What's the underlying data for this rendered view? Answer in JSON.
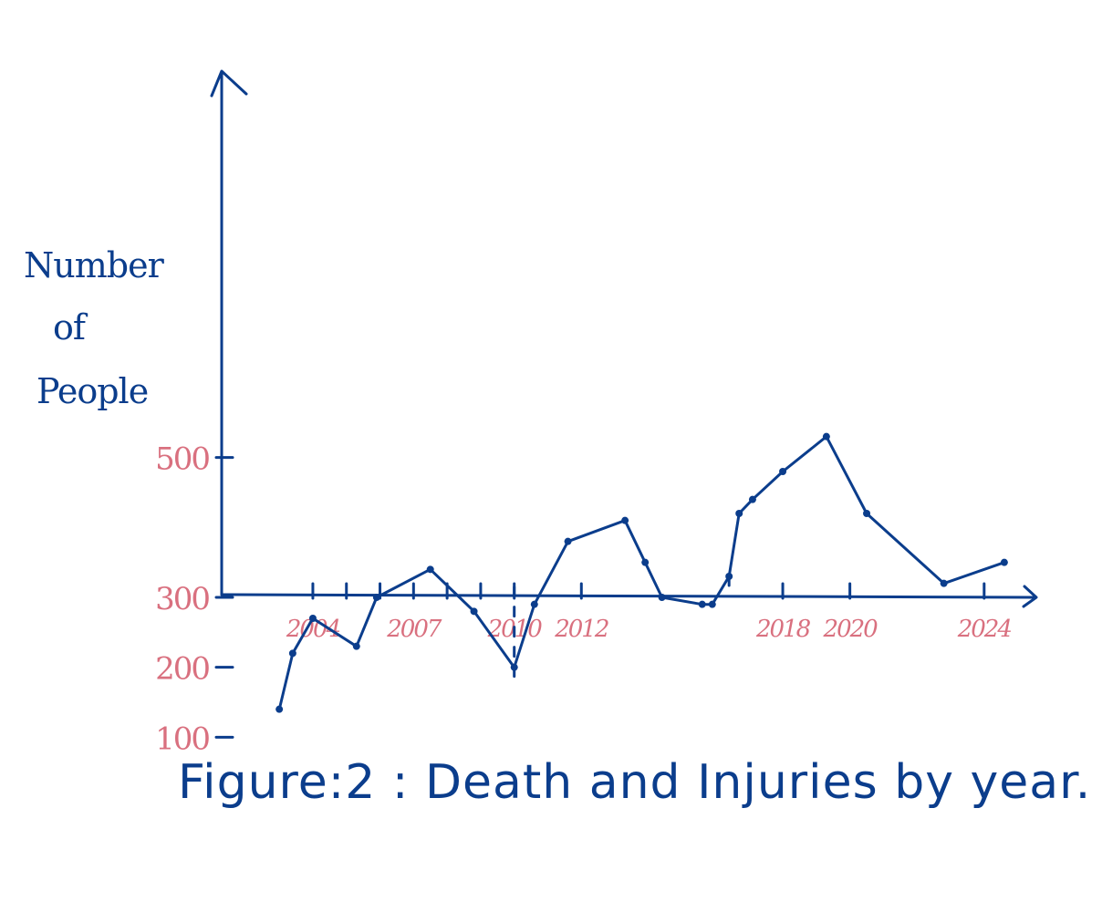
{
  "chart_data": {
    "type": "line",
    "title": "",
    "caption": "Figure:2 : Death and Injuries by year.",
    "ylabel": [
      "Number",
      "of",
      "People"
    ],
    "xlabel": "",
    "y_tick_labels": [
      "500",
      "300",
      "200",
      "100"
    ],
    "y_ticks": [
      500,
      300,
      200,
      100
    ],
    "x_tick_labels": [
      "2004",
      "2007",
      "2010",
      "2012",
      "2018",
      "2020",
      "2024"
    ],
    "x_ticks": [
      2004,
      2007,
      2010,
      2012,
      2018,
      2020,
      2024
    ],
    "x_minor_ticks": [
      2004,
      2005,
      2006,
      2007,
      2008,
      2009,
      2010,
      2012,
      2018,
      2020,
      2024
    ],
    "ylim": [
      -150,
      1050
    ],
    "xlim": [
      1996.5,
      2025.5
    ],
    "series": [
      {
        "x": [
          2003.0,
          2003.4,
          2004.0,
          2005.3,
          2005.9,
          2007.5,
          2008.8,
          2010.0,
          2010.6,
          2011.6,
          2013.3,
          2013.9,
          2014.4,
          2015.6,
          2015.9,
          2016.4,
          2016.7,
          2017.1,
          2018.0,
          2019.3,
          2020.5,
          2022.8,
          2024.6
        ],
        "y": [
          140,
          220,
          270,
          230,
          300,
          340,
          280,
          200,
          290,
          380,
          410,
          350,
          300,
          290,
          290,
          330,
          420,
          440,
          480,
          530,
          420,
          320,
          350
        ]
      }
    ],
    "dashed_drop_lines_at_x": [
      2010.0,
      2016.4
    ],
    "grid": false,
    "legend": "none",
    "colors": {
      "line": "#0b3d8c",
      "axis": "#0b3d8c",
      "tick_label": "#d9707f",
      "caption": "#0b3d8c"
    }
  }
}
